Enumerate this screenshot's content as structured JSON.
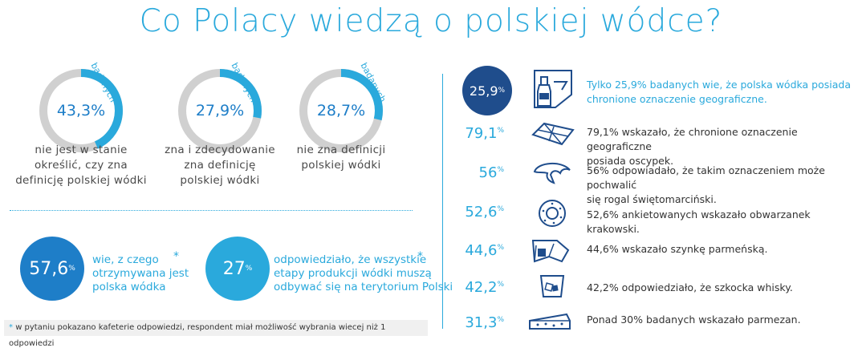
{
  "title": "Co Polacy wiedzą o polskiej wódce?",
  "rings": [
    {
      "value": "43,3%",
      "fraction": 0.433,
      "suffix": "badanych",
      "lines": [
        "nie jest w stanie",
        "określić, czy zna",
        "definicję polskiej wódki"
      ]
    },
    {
      "value": "27,9%",
      "fraction": 0.279,
      "suffix": "badanych",
      "lines": [
        "zna i zdecydowanie",
        "zna definicję",
        "polskiej wódki"
      ]
    },
    {
      "value": "28,7%",
      "fraction": 0.287,
      "suffix": "badanych",
      "lines": [
        "nie zna definicji",
        "polskiej wódki"
      ]
    }
  ],
  "low": [
    {
      "value": "57,6",
      "sup": "%",
      "lines": [
        "wie, z czego",
        "otrzymywana jest",
        "polska wódka"
      ],
      "star": "*"
    },
    {
      "value": "27",
      "sup": "%",
      "lines": [
        "odpowiedziało, że wszystkie",
        "etapy produkcji wódki muszą",
        "odbywać się na terytorium Polski"
      ],
      "star": "*"
    }
  ],
  "footnote": {
    "star": "*",
    "text": "w pytaniu pokazano kafeterie odpowiedzi, respondent miał możliwość wybrania wiecej niż 1 odpowiedzi"
  },
  "right": {
    "top": {
      "value": "25,9",
      "sup": "%",
      "lines": [
        "Tylko 25,9% badanych wie, że polska wódka posiada",
        "chronione oznaczenie geograficzne."
      ]
    },
    "rows": [
      {
        "value": "79,1",
        "sup": "%",
        "icon": "oscypek-icon",
        "lines": [
          "79,1% wskazało, że chronione oznaczenie geograficzne",
          "posiada oscypek."
        ]
      },
      {
        "value": "56",
        "sup": "%",
        "icon": "croissant-icon",
        "lines": [
          "56% odpowiadało, że takim oznaczeniem może pochwalić",
          "się rogal świętomarciński."
        ]
      },
      {
        "value": "52,6",
        "sup": "%",
        "icon": "bagel-icon",
        "lines": [
          "52,6% ankietowanych wskazało obwarzanek krakowski."
        ]
      },
      {
        "value": "44,6",
        "sup": "%",
        "icon": "ham-icon",
        "lines": [
          "44,6% wskazało szynkę parmeńską."
        ]
      },
      {
        "value": "42,2",
        "sup": "%",
        "icon": "whisky-glass-icon",
        "lines": [
          "42,2% odpowiedziało, że szkocka whisky."
        ]
      },
      {
        "value": "31,3",
        "sup": "%",
        "icon": "cheese-icon",
        "lines": [
          "Ponad 30% badanych wskazało parmezan."
        ]
      }
    ]
  },
  "colors": {
    "blue": "#2aa9dc",
    "darkblue": "#1f4d8c",
    "midblue": "#1e7ec8",
    "gray": "#d0d0d0"
  }
}
